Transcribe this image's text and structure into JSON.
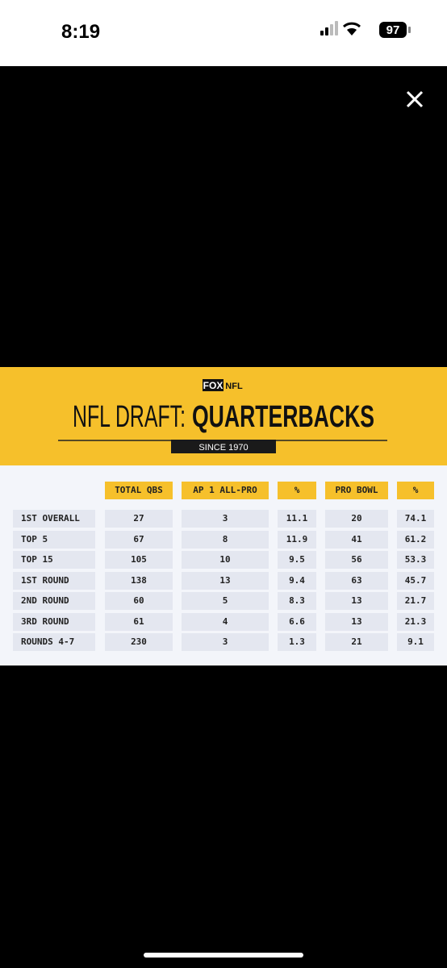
{
  "status_bar": {
    "time": "8:19",
    "battery": "97"
  },
  "graphic": {
    "logo": [
      "FOX",
      "NFL"
    ],
    "title_light": "NFL DRAFT:",
    "title_bold": "QUARTERBACKS",
    "subtitle": "SINCE 1970"
  },
  "table": {
    "columns": [
      "TOTAL QBS",
      "AP 1 ALL-PRO",
      "%",
      "PRO BOWL",
      "%"
    ],
    "rows": [
      {
        "label": "1ST OVERALL",
        "cells": [
          27,
          3,
          11.1,
          20,
          74.1
        ]
      },
      {
        "label": "TOP 5",
        "cells": [
          67,
          8,
          11.9,
          41,
          61.2
        ]
      },
      {
        "label": "TOP 15",
        "cells": [
          105,
          10,
          9.5,
          56,
          53.3
        ]
      },
      {
        "label": "1ST ROUND",
        "cells": [
          138,
          13,
          9.4,
          63,
          45.7
        ]
      },
      {
        "label": "2ND ROUND",
        "cells": [
          60,
          5,
          8.3,
          13,
          21.7
        ]
      },
      {
        "label": "3RD ROUND",
        "cells": [
          61,
          4,
          6.6,
          13,
          21.3
        ]
      },
      {
        "label": "ROUNDS 4-7",
        "cells": [
          230,
          3,
          1.3,
          21,
          9.1
        ]
      }
    ]
  }
}
